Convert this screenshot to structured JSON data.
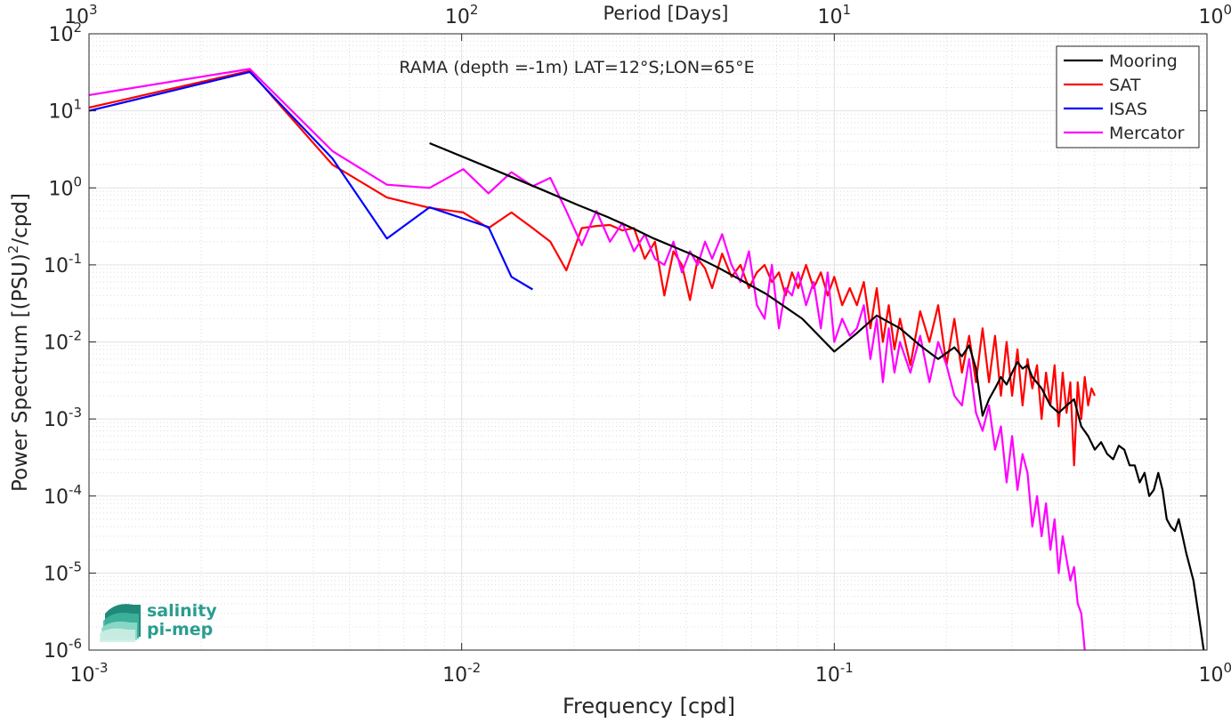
{
  "chart_data": {
    "type": "line",
    "title": "RAMA (depth =-1m) LAT=12°S;LON=65°E",
    "xlabel": "Frequency [cpd]",
    "ylabel": "Power Spectrum [(PSU)^2/cpd]",
    "ylabel_parts": {
      "main": "Power Spectrum [(PSU)",
      "sup": "2",
      "tail": "/cpd]"
    },
    "top_xlabel": "Period [Days]",
    "x_scale": "log",
    "y_scale": "log",
    "xlim": [
      0.001,
      1
    ],
    "ylim": [
      1e-06,
      100
    ],
    "grid": true,
    "minor_grid": true,
    "legend_position": "top-right",
    "x_ticks": [
      {
        "value": 0.001,
        "base": "10",
        "exp": "-3"
      },
      {
        "value": 0.01,
        "base": "10",
        "exp": "-2"
      },
      {
        "value": 0.1,
        "base": "10",
        "exp": "-1"
      },
      {
        "value": 1,
        "base": "10",
        "exp": "0"
      }
    ],
    "y_ticks": [
      {
        "value": 1e-06,
        "base": "10",
        "exp": "-6"
      },
      {
        "value": 1e-05,
        "base": "10",
        "exp": "-5"
      },
      {
        "value": 0.0001,
        "base": "10",
        "exp": "-4"
      },
      {
        "value": 0.001,
        "base": "10",
        "exp": "-3"
      },
      {
        "value": 0.01,
        "base": "10",
        "exp": "-2"
      },
      {
        "value": 0.1,
        "base": "10",
        "exp": "-1"
      },
      {
        "value": 1,
        "base": "10",
        "exp": "0"
      },
      {
        "value": 10,
        "base": "10",
        "exp": "1"
      },
      {
        "value": 100,
        "base": "10",
        "exp": "2"
      }
    ],
    "top_ticks": [
      {
        "value": 0.001,
        "base": "10",
        "exp": "3"
      },
      {
        "value": 0.01,
        "base": "10",
        "exp": "2"
      },
      {
        "value": 0.1,
        "base": "10",
        "exp": "1"
      },
      {
        "value": 1,
        "base": "10",
        "exp": "0"
      }
    ],
    "series": [
      {
        "name": "Mooring",
        "color": "#000000",
        "x": [
          0.0082,
          0.0123,
          0.0164,
          0.0205,
          0.0246,
          0.0287,
          0.0328,
          0.041,
          0.0492,
          0.0574,
          0.0656,
          0.082,
          0.1,
          0.115,
          0.13,
          0.15,
          0.17,
          0.19,
          0.21,
          0.22,
          0.23,
          0.24,
          0.25,
          0.26,
          0.27,
          0.28,
          0.29,
          0.3,
          0.31,
          0.32,
          0.33,
          0.34,
          0.36,
          0.38,
          0.4,
          0.42,
          0.44,
          0.46,
          0.48,
          0.5,
          0.52,
          0.54,
          0.56,
          0.58,
          0.6,
          0.62,
          0.64,
          0.66,
          0.68,
          0.7,
          0.72,
          0.74,
          0.76,
          0.78,
          0.8,
          0.82,
          0.84,
          0.86,
          0.88,
          0.9,
          0.92,
          0.94,
          0.96,
          0.98
        ],
        "y": [
          3.8,
          1.7,
          0.95,
          0.6,
          0.42,
          0.3,
          0.22,
          0.14,
          0.09,
          0.06,
          0.042,
          0.02,
          0.0075,
          0.013,
          0.022,
          0.015,
          0.009,
          0.006,
          0.0085,
          0.0065,
          0.009,
          0.0045,
          0.0011,
          0.0018,
          0.0025,
          0.0035,
          0.0028,
          0.004,
          0.0055,
          0.0045,
          0.005,
          0.0035,
          0.0025,
          0.0015,
          0.0012,
          0.0015,
          0.0018,
          0.0008,
          0.0006,
          0.0004,
          0.0005,
          0.00035,
          0.0003,
          0.00045,
          0.0004,
          0.00025,
          0.00025,
          0.00015,
          0.0002,
          0.0001,
          0.00012,
          0.0002,
          0.00012,
          5e-05,
          4e-05,
          3.5e-05,
          5e-05,
          3e-05,
          1.8e-05,
          1.2e-05,
          8e-06,
          4e-06,
          2e-06,
          1e-06
        ]
      },
      {
        "name": "SAT",
        "color": "#ff0000",
        "x": [
          0.001,
          0.0027,
          0.0045,
          0.0063,
          0.0082,
          0.0101,
          0.0118,
          0.0136,
          0.0155,
          0.0173,
          0.0191,
          0.021,
          0.023,
          0.025,
          0.027,
          0.029,
          0.031,
          0.033,
          0.035,
          0.037,
          0.039,
          0.041,
          0.043,
          0.045,
          0.047,
          0.05,
          0.053,
          0.056,
          0.059,
          0.062,
          0.065,
          0.068,
          0.071,
          0.074,
          0.077,
          0.08,
          0.084,
          0.088,
          0.092,
          0.096,
          0.1,
          0.105,
          0.11,
          0.115,
          0.12,
          0.125,
          0.13,
          0.135,
          0.14,
          0.145,
          0.15,
          0.16,
          0.17,
          0.18,
          0.19,
          0.2,
          0.21,
          0.22,
          0.23,
          0.24,
          0.25,
          0.26,
          0.27,
          0.28,
          0.29,
          0.3,
          0.31,
          0.32,
          0.33,
          0.34,
          0.35,
          0.36,
          0.37,
          0.38,
          0.39,
          0.4,
          0.41,
          0.42,
          0.43,
          0.44,
          0.45,
          0.46,
          0.47,
          0.48,
          0.49,
          0.5
        ],
        "y": [
          11,
          33,
          2.0,
          0.75,
          0.55,
          0.48,
          0.3,
          0.48,
          0.3,
          0.2,
          0.085,
          0.3,
          0.32,
          0.33,
          0.28,
          0.3,
          0.12,
          0.2,
          0.04,
          0.15,
          0.1,
          0.035,
          0.12,
          0.09,
          0.05,
          0.14,
          0.07,
          0.1,
          0.05,
          0.08,
          0.1,
          0.06,
          0.08,
          0.04,
          0.08,
          0.05,
          0.1,
          0.05,
          0.08,
          0.04,
          0.07,
          0.03,
          0.05,
          0.03,
          0.06,
          0.015,
          0.05,
          0.01,
          0.03,
          0.008,
          0.02,
          0.005,
          0.025,
          0.01,
          0.03,
          0.005,
          0.02,
          0.004,
          0.012,
          0.003,
          0.015,
          0.003,
          0.012,
          0.002,
          0.01,
          0.002,
          0.008,
          0.0015,
          0.006,
          0.0025,
          0.005,
          0.001,
          0.004,
          0.0015,
          0.005,
          0.0008,
          0.004,
          0.0012,
          0.003,
          0.00025,
          0.003,
          0.001,
          0.0035,
          0.0015,
          0.0025,
          0.002
        ]
      },
      {
        "name": "ISAS",
        "color": "#0000ff",
        "x": [
          0.001,
          0.0027,
          0.0045,
          0.0063,
          0.0082,
          0.0118,
          0.0136,
          0.0155
        ],
        "y": [
          10,
          32,
          2.4,
          0.22,
          0.56,
          0.31,
          0.07,
          0.048
        ]
      },
      {
        "name": "Mercator",
        "color": "#ff00ff",
        "x": [
          0.001,
          0.0027,
          0.0045,
          0.0063,
          0.0082,
          0.0101,
          0.0118,
          0.0136,
          0.0155,
          0.0173,
          0.0191,
          0.021,
          0.023,
          0.025,
          0.027,
          0.029,
          0.031,
          0.033,
          0.035,
          0.037,
          0.039,
          0.041,
          0.043,
          0.045,
          0.047,
          0.05,
          0.053,
          0.056,
          0.059,
          0.062,
          0.065,
          0.068,
          0.071,
          0.074,
          0.077,
          0.08,
          0.084,
          0.088,
          0.092,
          0.096,
          0.1,
          0.105,
          0.11,
          0.115,
          0.12,
          0.125,
          0.13,
          0.135,
          0.14,
          0.145,
          0.15,
          0.16,
          0.17,
          0.18,
          0.19,
          0.2,
          0.21,
          0.22,
          0.23,
          0.24,
          0.25,
          0.26,
          0.27,
          0.28,
          0.29,
          0.3,
          0.31,
          0.32,
          0.33,
          0.34,
          0.35,
          0.36,
          0.37,
          0.38,
          0.39,
          0.4,
          0.41,
          0.42,
          0.43,
          0.44,
          0.45,
          0.46,
          0.47
        ],
        "y": [
          16,
          35,
          3.0,
          1.1,
          1.0,
          1.75,
          0.85,
          1.6,
          1.05,
          1.35,
          0.5,
          0.18,
          0.5,
          0.2,
          0.35,
          0.15,
          0.25,
          0.12,
          0.1,
          0.2,
          0.08,
          0.15,
          0.1,
          0.2,
          0.12,
          0.25,
          0.1,
          0.06,
          0.15,
          0.03,
          0.02,
          0.1,
          0.015,
          0.05,
          0.04,
          0.08,
          0.03,
          0.06,
          0.015,
          0.08,
          0.01,
          0.02,
          0.012,
          0.015,
          0.03,
          0.006,
          0.02,
          0.003,
          0.015,
          0.004,
          0.01,
          0.004,
          0.012,
          0.003,
          0.01,
          0.005,
          0.002,
          0.0015,
          0.006,
          0.0012,
          0.0007,
          0.0015,
          0.0004,
          0.0008,
          0.00015,
          0.0006,
          0.00012,
          0.00035,
          0.0002,
          4e-05,
          0.0001,
          3e-05,
          8e-05,
          2e-05,
          5e-05,
          1e-05,
          3e-05,
          1.5e-05,
          8e-06,
          1.2e-05,
          4e-06,
          3e-06,
          1e-06
        ]
      }
    ]
  },
  "logo": {
    "line1": "salinity",
    "line2": "pi-mep",
    "color": "#2a9d8f"
  }
}
